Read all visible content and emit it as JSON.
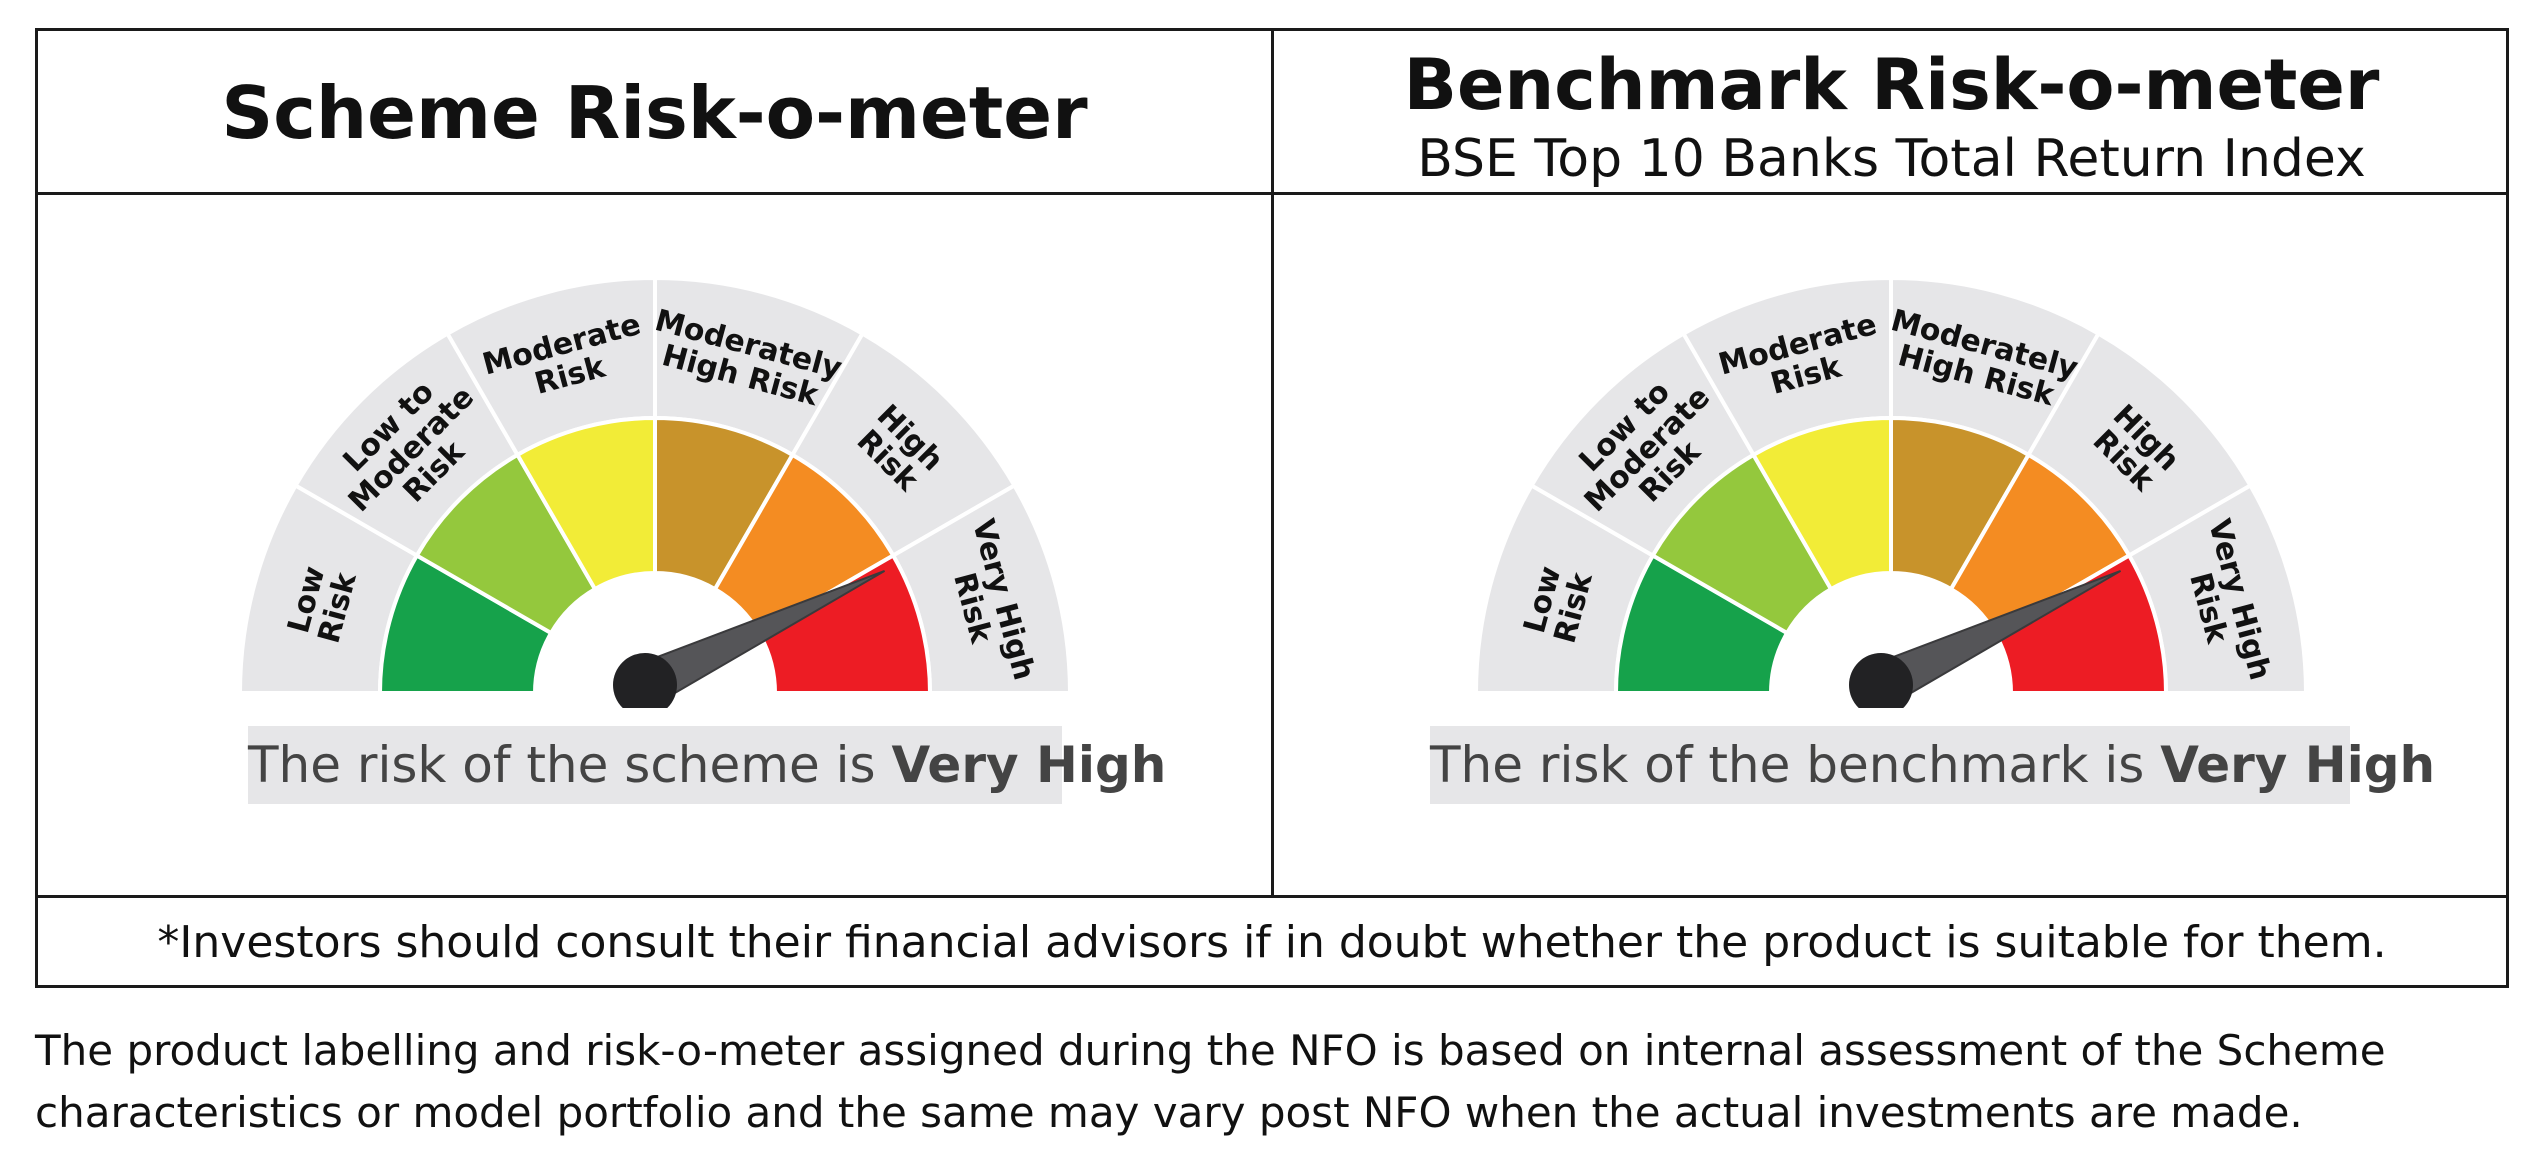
{
  "scheme": {
    "title": "Scheme Risk-o-meter",
    "caption_prefix": "The risk of the scheme is ",
    "caption_level": "Very High"
  },
  "benchmark": {
    "title": "Benchmark Risk-o-meter",
    "subtitle": "BSE Top 10 Banks Total Return Index",
    "caption_prefix": "The risk of the benchmark is ",
    "caption_level": "Very High"
  },
  "gauge": {
    "segments": [
      {
        "lines": [
          "Low",
          "Risk"
        ],
        "color": "#16a24b"
      },
      {
        "lines": [
          "Low to",
          "Moderate",
          "Risk"
        ],
        "color": "#94c83d"
      },
      {
        "lines": [
          "Moderate",
          "Risk"
        ],
        "color": "#f2ec37"
      },
      {
        "lines": [
          "Moderately",
          "High Risk"
        ],
        "color": "#c8932b"
      },
      {
        "lines": [
          "High",
          "Risk"
        ],
        "color": "#f48c22"
      },
      {
        "lines": [
          "Very High",
          "Risk"
        ],
        "color": "#ed1c24"
      }
    ],
    "outer_band_color": "#e6e6e8",
    "needle_level_index": 5
  },
  "disclaimer": "*Investors should consult their financial advisors if in doubt whether the product is suitable for them.",
  "footnote": {
    "line1": "The product labelling and risk-o-meter assigned during the NFO is based on internal assessment of the Scheme",
    "line2": "characteristics or model portfolio and the same may vary post NFO when the actual  investments are made."
  }
}
